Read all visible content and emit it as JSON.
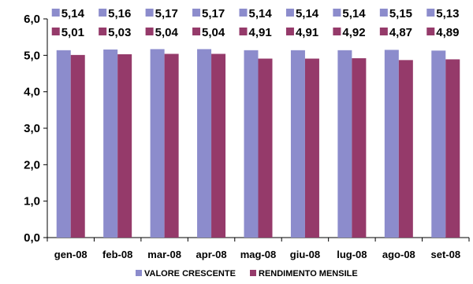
{
  "chart_data": {
    "type": "bar",
    "categories": [
      "gen-08",
      "feb-08",
      "mar-08",
      "apr-08",
      "mag-08",
      "giu-08",
      "lug-08",
      "ago-08",
      "set-08"
    ],
    "series": [
      {
        "name": "VALORE CRESCENTE",
        "color": "#8c8ccc",
        "values": [
          5.14,
          5.16,
          5.17,
          5.17,
          5.14,
          5.14,
          5.14,
          5.15,
          5.13
        ],
        "labels": [
          "5,14",
          "5,16",
          "5,17",
          "5,17",
          "5,14",
          "5,14",
          "5,14",
          "5,15",
          "5,13"
        ]
      },
      {
        "name": "RENDIMENTO MENSILE",
        "color": "#953a6a",
        "values": [
          5.01,
          5.03,
          5.04,
          5.04,
          4.91,
          4.91,
          4.92,
          4.87,
          4.89
        ],
        "labels": [
          "5,01",
          "5,03",
          "5,04",
          "5,04",
          "4,91",
          "4,91",
          "4,92",
          "4,87",
          "4,89"
        ]
      }
    ],
    "ylim": [
      0,
      6
    ],
    "yticks": [
      "0,0",
      "1,0",
      "2,0",
      "3,0",
      "4,0",
      "5,0",
      "6,0"
    ],
    "grid": false,
    "legend": "bottom"
  }
}
